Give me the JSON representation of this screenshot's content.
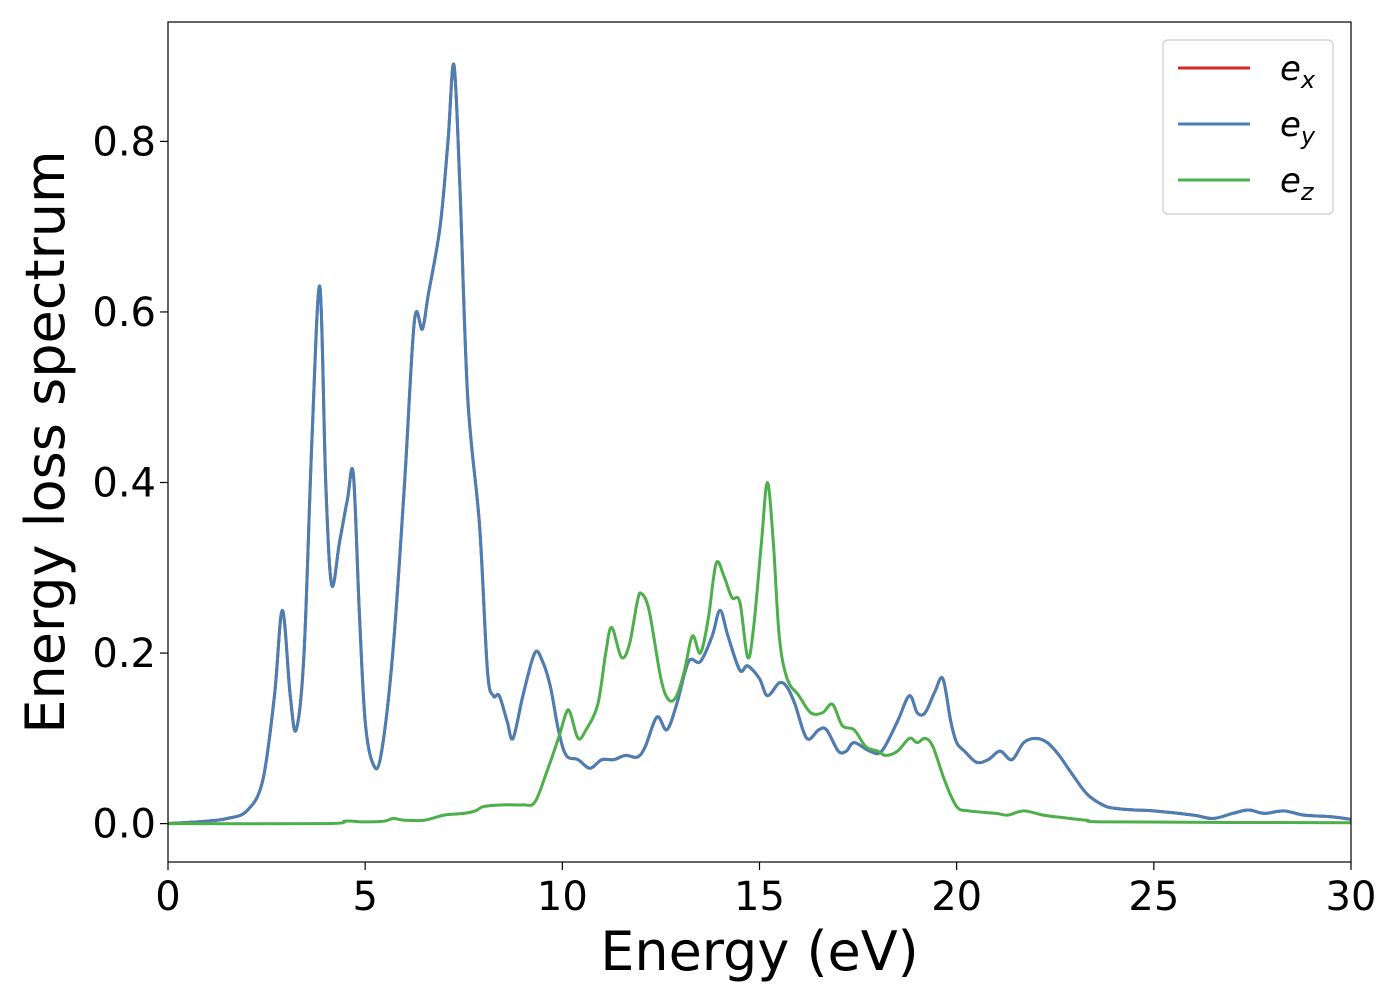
{
  "chart_data": {
    "type": "line",
    "title": "",
    "xlabel": "Energy (eV)",
    "ylabel": "Energy loss spectrum",
    "xlim": [
      0,
      30
    ],
    "ylim": [
      -0.045,
      0.94
    ],
    "xticks": [
      0,
      5,
      10,
      15,
      20,
      25,
      30
    ],
    "xtick_labels": [
      "0",
      "5",
      "10",
      "15",
      "20",
      "25",
      "30"
    ],
    "yticks": [
      0.0,
      0.2,
      0.4,
      0.6,
      0.8
    ],
    "ytick_labels": [
      "0.0",
      "0.2",
      "0.4",
      "0.6",
      "0.8"
    ],
    "grid": false,
    "legend_position": "top-right",
    "series": [
      {
        "name": "e_x",
        "legend_base": "e",
        "legend_sub": "x",
        "color": "#d62728",
        "points": [
          [
            0,
            0
          ],
          [
            1,
            0.003
          ],
          [
            1.5,
            0.006
          ],
          [
            2,
            0.015
          ],
          [
            2.4,
            0.05
          ],
          [
            2.7,
            0.15
          ],
          [
            2.9,
            0.25
          ],
          [
            3.1,
            0.15
          ],
          [
            3.25,
            0.11
          ],
          [
            3.45,
            0.2
          ],
          [
            3.65,
            0.45
          ],
          [
            3.85,
            0.63
          ],
          [
            4.0,
            0.4
          ],
          [
            4.15,
            0.28
          ],
          [
            4.35,
            0.33
          ],
          [
            4.55,
            0.38
          ],
          [
            4.7,
            0.41
          ],
          [
            4.85,
            0.25
          ],
          [
            5.0,
            0.12
          ],
          [
            5.2,
            0.07
          ],
          [
            5.4,
            0.08
          ],
          [
            5.7,
            0.2
          ],
          [
            6.0,
            0.4
          ],
          [
            6.25,
            0.59
          ],
          [
            6.45,
            0.58
          ],
          [
            6.6,
            0.62
          ],
          [
            6.9,
            0.7
          ],
          [
            7.1,
            0.8
          ],
          [
            7.25,
            0.89
          ],
          [
            7.4,
            0.75
          ],
          [
            7.6,
            0.5
          ],
          [
            7.9,
            0.35
          ],
          [
            8.1,
            0.18
          ],
          [
            8.25,
            0.15
          ],
          [
            8.4,
            0.15
          ],
          [
            8.6,
            0.12
          ],
          [
            8.75,
            0.1
          ],
          [
            9.0,
            0.15
          ],
          [
            9.3,
            0.2
          ],
          [
            9.5,
            0.19
          ],
          [
            9.7,
            0.16
          ],
          [
            9.9,
            0.11
          ],
          [
            10.1,
            0.08
          ],
          [
            10.4,
            0.075
          ],
          [
            10.7,
            0.065
          ],
          [
            11.0,
            0.075
          ],
          [
            11.3,
            0.075
          ],
          [
            11.6,
            0.08
          ],
          [
            11.9,
            0.078
          ],
          [
            12.1,
            0.09
          ],
          [
            12.4,
            0.125
          ],
          [
            12.65,
            0.11
          ],
          [
            12.9,
            0.14
          ],
          [
            13.2,
            0.19
          ],
          [
            13.5,
            0.19
          ],
          [
            13.8,
            0.22
          ],
          [
            14.0,
            0.25
          ],
          [
            14.2,
            0.22
          ],
          [
            14.5,
            0.18
          ],
          [
            14.7,
            0.185
          ],
          [
            15.0,
            0.17
          ],
          [
            15.2,
            0.15
          ],
          [
            15.5,
            0.165
          ],
          [
            15.7,
            0.16
          ],
          [
            15.9,
            0.14
          ],
          [
            16.2,
            0.1
          ],
          [
            16.5,
            0.11
          ],
          [
            16.7,
            0.11
          ],
          [
            17.0,
            0.085
          ],
          [
            17.2,
            0.085
          ],
          [
            17.4,
            0.095
          ],
          [
            17.8,
            0.085
          ],
          [
            18.1,
            0.085
          ],
          [
            18.5,
            0.12
          ],
          [
            18.8,
            0.15
          ],
          [
            19.0,
            0.13
          ],
          [
            19.2,
            0.13
          ],
          [
            19.45,
            0.155
          ],
          [
            19.65,
            0.17
          ],
          [
            19.85,
            0.12
          ],
          [
            20.0,
            0.095
          ],
          [
            20.2,
            0.085
          ],
          [
            20.5,
            0.072
          ],
          [
            20.8,
            0.075
          ],
          [
            21.1,
            0.085
          ],
          [
            21.4,
            0.075
          ],
          [
            21.7,
            0.095
          ],
          [
            22.0,
            0.1
          ],
          [
            22.3,
            0.095
          ],
          [
            22.6,
            0.08
          ],
          [
            22.9,
            0.06
          ],
          [
            23.3,
            0.035
          ],
          [
            23.7,
            0.022
          ],
          [
            24.0,
            0.018
          ],
          [
            24.5,
            0.016
          ],
          [
            25.0,
            0.015
          ],
          [
            26.0,
            0.01
          ],
          [
            26.5,
            0.006
          ],
          [
            27.0,
            0.012
          ],
          [
            27.4,
            0.016
          ],
          [
            27.8,
            0.012
          ],
          [
            28.3,
            0.015
          ],
          [
            28.8,
            0.01
          ],
          [
            29.5,
            0.008
          ],
          [
            30,
            0.005
          ]
        ]
      },
      {
        "name": "e_y",
        "legend_base": "e",
        "legend_sub": "y",
        "color": "#4a7fb5",
        "points": [
          [
            0,
            0
          ],
          [
            1,
            0.003
          ],
          [
            1.5,
            0.006
          ],
          [
            2,
            0.015
          ],
          [
            2.4,
            0.05
          ],
          [
            2.7,
            0.15
          ],
          [
            2.9,
            0.25
          ],
          [
            3.1,
            0.15
          ],
          [
            3.25,
            0.11
          ],
          [
            3.45,
            0.2
          ],
          [
            3.65,
            0.45
          ],
          [
            3.85,
            0.63
          ],
          [
            4.0,
            0.4
          ],
          [
            4.15,
            0.28
          ],
          [
            4.35,
            0.33
          ],
          [
            4.55,
            0.38
          ],
          [
            4.7,
            0.41
          ],
          [
            4.85,
            0.25
          ],
          [
            5.0,
            0.12
          ],
          [
            5.2,
            0.07
          ],
          [
            5.4,
            0.08
          ],
          [
            5.7,
            0.2
          ],
          [
            6.0,
            0.4
          ],
          [
            6.25,
            0.59
          ],
          [
            6.45,
            0.58
          ],
          [
            6.6,
            0.62
          ],
          [
            6.9,
            0.7
          ],
          [
            7.1,
            0.8
          ],
          [
            7.25,
            0.89
          ],
          [
            7.4,
            0.75
          ],
          [
            7.6,
            0.5
          ],
          [
            7.9,
            0.35
          ],
          [
            8.1,
            0.18
          ],
          [
            8.25,
            0.15
          ],
          [
            8.4,
            0.15
          ],
          [
            8.6,
            0.12
          ],
          [
            8.75,
            0.1
          ],
          [
            9.0,
            0.15
          ],
          [
            9.3,
            0.2
          ],
          [
            9.5,
            0.19
          ],
          [
            9.7,
            0.16
          ],
          [
            9.9,
            0.11
          ],
          [
            10.1,
            0.08
          ],
          [
            10.4,
            0.075
          ],
          [
            10.7,
            0.065
          ],
          [
            11.0,
            0.075
          ],
          [
            11.3,
            0.075
          ],
          [
            11.6,
            0.08
          ],
          [
            11.9,
            0.078
          ],
          [
            12.1,
            0.09
          ],
          [
            12.4,
            0.125
          ],
          [
            12.65,
            0.11
          ],
          [
            12.9,
            0.14
          ],
          [
            13.2,
            0.19
          ],
          [
            13.5,
            0.19
          ],
          [
            13.8,
            0.22
          ],
          [
            14.0,
            0.25
          ],
          [
            14.2,
            0.22
          ],
          [
            14.5,
            0.18
          ],
          [
            14.7,
            0.185
          ],
          [
            15.0,
            0.17
          ],
          [
            15.2,
            0.15
          ],
          [
            15.5,
            0.165
          ],
          [
            15.7,
            0.16
          ],
          [
            15.9,
            0.14
          ],
          [
            16.2,
            0.1
          ],
          [
            16.5,
            0.11
          ],
          [
            16.7,
            0.11
          ],
          [
            17.0,
            0.085
          ],
          [
            17.2,
            0.085
          ],
          [
            17.4,
            0.095
          ],
          [
            17.8,
            0.085
          ],
          [
            18.1,
            0.085
          ],
          [
            18.5,
            0.12
          ],
          [
            18.8,
            0.15
          ],
          [
            19.0,
            0.13
          ],
          [
            19.2,
            0.13
          ],
          [
            19.45,
            0.155
          ],
          [
            19.65,
            0.17
          ],
          [
            19.85,
            0.12
          ],
          [
            20.0,
            0.095
          ],
          [
            20.2,
            0.085
          ],
          [
            20.5,
            0.072
          ],
          [
            20.8,
            0.075
          ],
          [
            21.1,
            0.085
          ],
          [
            21.4,
            0.075
          ],
          [
            21.7,
            0.095
          ],
          [
            22.0,
            0.1
          ],
          [
            22.3,
            0.095
          ],
          [
            22.6,
            0.08
          ],
          [
            22.9,
            0.06
          ],
          [
            23.3,
            0.035
          ],
          [
            23.7,
            0.022
          ],
          [
            24.0,
            0.018
          ],
          [
            24.5,
            0.016
          ],
          [
            25.0,
            0.015
          ],
          [
            26.0,
            0.01
          ],
          [
            26.5,
            0.006
          ],
          [
            27.0,
            0.012
          ],
          [
            27.4,
            0.016
          ],
          [
            27.8,
            0.012
          ],
          [
            28.3,
            0.015
          ],
          [
            28.8,
            0.01
          ],
          [
            29.5,
            0.008
          ],
          [
            30,
            0.005
          ]
        ]
      },
      {
        "name": "e_z",
        "legend_base": "e",
        "legend_sub": "z",
        "color": "#4daf4a",
        "points": [
          [
            0,
            0
          ],
          [
            4,
            0.0
          ],
          [
            4.5,
            0.003
          ],
          [
            5,
            0.002
          ],
          [
            5.5,
            0.003
          ],
          [
            5.7,
            0.006
          ],
          [
            6.0,
            0.004
          ],
          [
            6.5,
            0.004
          ],
          [
            7.0,
            0.01
          ],
          [
            7.5,
            0.012
          ],
          [
            7.8,
            0.015
          ],
          [
            8.0,
            0.02
          ],
          [
            8.5,
            0.022
          ],
          [
            9.0,
            0.022
          ],
          [
            9.3,
            0.025
          ],
          [
            9.6,
            0.06
          ],
          [
            9.9,
            0.1
          ],
          [
            10.1,
            0.13
          ],
          [
            10.2,
            0.13
          ],
          [
            10.4,
            0.1
          ],
          [
            10.6,
            0.11
          ],
          [
            10.9,
            0.14
          ],
          [
            11.1,
            0.2
          ],
          [
            11.25,
            0.23
          ],
          [
            11.5,
            0.195
          ],
          [
            11.7,
            0.21
          ],
          [
            11.9,
            0.26
          ],
          [
            12.0,
            0.27
          ],
          [
            12.2,
            0.25
          ],
          [
            12.5,
            0.17
          ],
          [
            12.7,
            0.145
          ],
          [
            12.9,
            0.15
          ],
          [
            13.1,
            0.18
          ],
          [
            13.3,
            0.22
          ],
          [
            13.5,
            0.2
          ],
          [
            13.7,
            0.24
          ],
          [
            13.9,
            0.305
          ],
          [
            14.1,
            0.29
          ],
          [
            14.3,
            0.265
          ],
          [
            14.5,
            0.26
          ],
          [
            14.7,
            0.195
          ],
          [
            14.85,
            0.23
          ],
          [
            15.05,
            0.33
          ],
          [
            15.2,
            0.4
          ],
          [
            15.35,
            0.33
          ],
          [
            15.5,
            0.22
          ],
          [
            15.7,
            0.17
          ],
          [
            16.0,
            0.15
          ],
          [
            16.3,
            0.13
          ],
          [
            16.6,
            0.13
          ],
          [
            16.85,
            0.14
          ],
          [
            17.1,
            0.115
          ],
          [
            17.4,
            0.11
          ],
          [
            17.7,
            0.09
          ],
          [
            18.0,
            0.085
          ],
          [
            18.2,
            0.08
          ],
          [
            18.5,
            0.085
          ],
          [
            18.8,
            0.1
          ],
          [
            19.0,
            0.095
          ],
          [
            19.2,
            0.1
          ],
          [
            19.4,
            0.09
          ],
          [
            19.7,
            0.05
          ],
          [
            20.0,
            0.02
          ],
          [
            20.3,
            0.015
          ],
          [
            21.0,
            0.012
          ],
          [
            21.3,
            0.01
          ],
          [
            21.7,
            0.015
          ],
          [
            22.2,
            0.01
          ],
          [
            22.7,
            0.007
          ],
          [
            23.3,
            0.004
          ],
          [
            24.0,
            0.002
          ],
          [
            30,
            0.001
          ]
        ]
      }
    ]
  }
}
